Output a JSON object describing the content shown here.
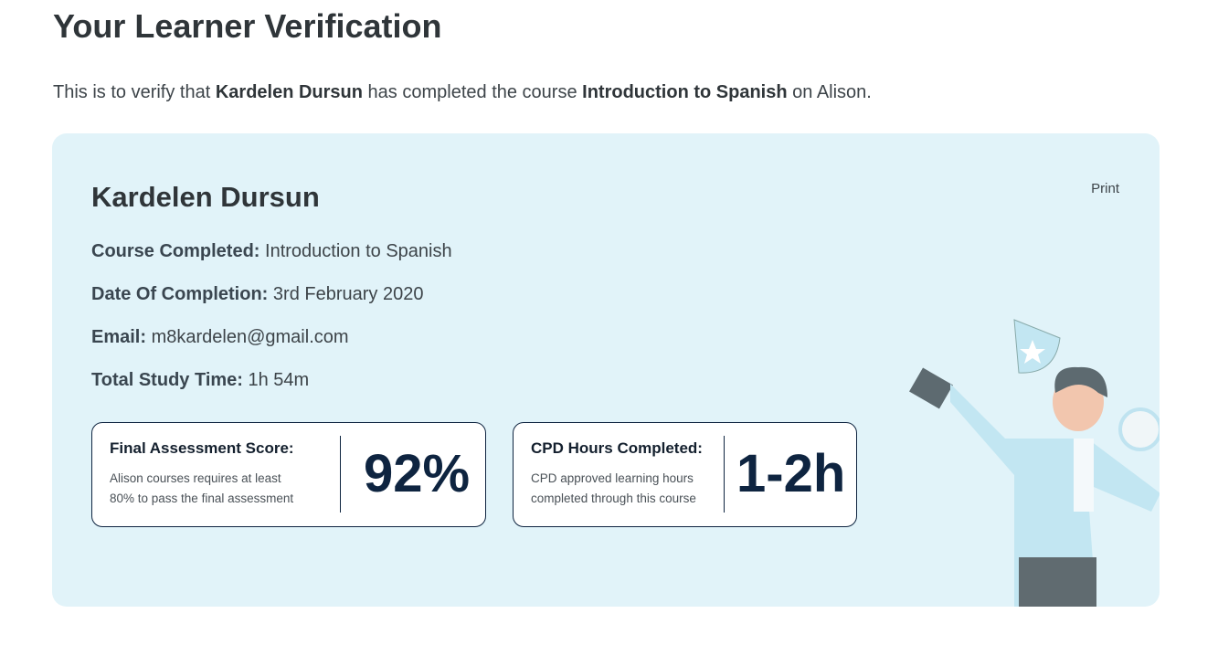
{
  "page": {
    "title": "Your Learner Verification",
    "intro_prefix": "This is to verify that ",
    "learner": "Kardelen Dursun",
    "intro_mid": " has completed the course ",
    "course": "Introduction to Spanish",
    "intro_suffix": " on Alison."
  },
  "card": {
    "name": "Kardelen Dursun",
    "print_label": "Print",
    "fields": [
      {
        "label": "Course Completed:",
        "value": "Introduction to Spanish"
      },
      {
        "label": "Date Of Completion:",
        "value": "3rd February 2020"
      },
      {
        "label": "Email:",
        "value": "m8kardelen@gmail.com"
      },
      {
        "label": "Total Study Time:",
        "value": "1h 54m"
      }
    ],
    "score": {
      "title": "Final Assessment Score:",
      "line1": "Alison courses requires at least",
      "line2": "80% to pass the final assessment",
      "value": "92%"
    },
    "cpd": {
      "title": "CPD Hours Completed:",
      "line1": "CPD approved learning hours",
      "line2": "completed through this course",
      "value": "1-2h"
    },
    "illustration": "person-holding-trophy-and-stopwatch"
  }
}
